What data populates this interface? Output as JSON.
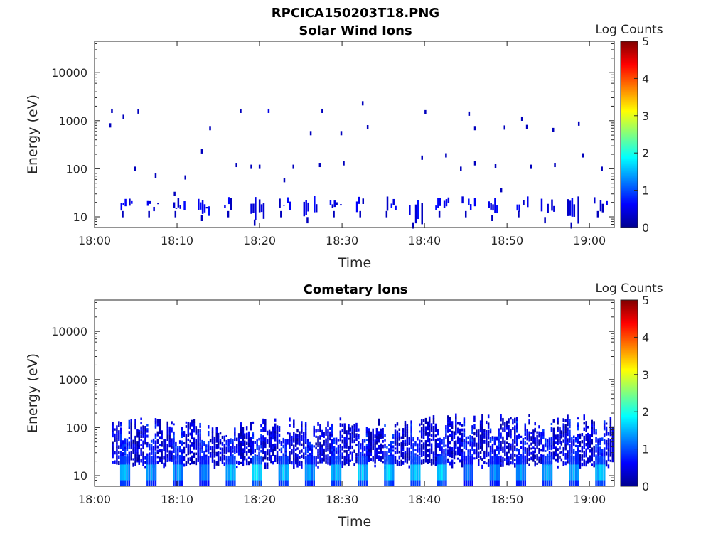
{
  "figure_title": "RPCICA150203T18.PNG",
  "chart_data": [
    {
      "type": "heatmap",
      "title": "Solar Wind Ions",
      "xlabel": "Time",
      "ylabel": "Energy (eV)",
      "yscale": "log",
      "ylim": [
        6,
        45000
      ],
      "xlim": [
        "18:00",
        "19:03"
      ],
      "x_ticks": [
        "18:00",
        "18:10",
        "18:20",
        "18:30",
        "18:40",
        "18:50",
        "19:00"
      ],
      "y_ticks": [
        "10",
        "100",
        "1000",
        "10000"
      ],
      "colorbar": {
        "label": "Log Counts",
        "ticks": [
          "0",
          "1",
          "2",
          "3",
          "4",
          "5"
        ],
        "range": [
          0,
          5
        ],
        "colormap": "jet"
      },
      "grid": false,
      "bursts": [
        {
          "t": "18:03.6",
          "e_low": 12,
          "e_high": 27,
          "level": 0.3
        },
        {
          "t": "18:06.8",
          "e_low": 12,
          "e_high": 22,
          "level": 0.3
        },
        {
          "t": "18:10.0",
          "e_low": 12,
          "e_high": 25,
          "level": 0.3
        },
        {
          "t": "18:13.2",
          "e_low": 10,
          "e_high": 25,
          "level": 0.3
        },
        {
          "t": "18:16.4",
          "e_low": 12,
          "e_high": 27,
          "level": 0.3
        },
        {
          "t": "18:19.6",
          "e_low": 8,
          "e_high": 27,
          "level": 0.3
        },
        {
          "t": "18:22.8",
          "e_low": 12,
          "e_high": 27,
          "level": 0.3
        },
        {
          "t": "18:26.0",
          "e_low": 9,
          "e_high": 27,
          "level": 0.3
        },
        {
          "t": "18:29.2",
          "e_low": 12,
          "e_high": 27,
          "level": 0.3
        },
        {
          "t": "18:32.4",
          "e_low": 12,
          "e_high": 27,
          "level": 0.3
        },
        {
          "t": "18:35.6",
          "e_low": 12,
          "e_high": 27,
          "level": 0.3
        },
        {
          "t": "18:38.8",
          "e_low": 7,
          "e_high": 27,
          "level": 0.3
        },
        {
          "t": "18:42.0",
          "e_low": 12,
          "e_high": 27,
          "level": 0.3
        },
        {
          "t": "18:45.2",
          "e_low": 12,
          "e_high": 27,
          "level": 0.3
        },
        {
          "t": "18:48.4",
          "e_low": 10,
          "e_high": 27,
          "level": 0.3
        },
        {
          "t": "18:51.6",
          "e_low": 12,
          "e_high": 27,
          "level": 0.3
        },
        {
          "t": "18:54.8",
          "e_low": 9,
          "e_high": 27,
          "level": 0.3
        },
        {
          "t": "18:58.0",
          "e_low": 7,
          "e_high": 27,
          "level": 0.3
        },
        {
          "t": "19:01.2",
          "e_low": 12,
          "e_high": 27,
          "level": 0.3
        }
      ],
      "scattered_points": [
        {
          "t": "18:01.8",
          "e": 800,
          "level": 0.3
        },
        {
          "t": "18:02.0",
          "e": 1600,
          "level": 0.3
        },
        {
          "t": "18:03.4",
          "e": 1200,
          "level": 0.3
        },
        {
          "t": "18:04.8",
          "e": 100,
          "level": 0.3
        },
        {
          "t": "18:05.2",
          "e": 1550,
          "level": 0.3
        },
        {
          "t": "18:07.3",
          "e": 72,
          "level": 0.3
        },
        {
          "t": "18:09.6",
          "e": 30,
          "level": 0.3
        },
        {
          "t": "18:10.9",
          "e": 66,
          "level": 0.3
        },
        {
          "t": "18:12.9",
          "e": 230,
          "level": 0.3
        },
        {
          "t": "18:13.9",
          "e": 700,
          "level": 0.3
        },
        {
          "t": "18:17.1",
          "e": 120,
          "level": 0.3
        },
        {
          "t": "18:17.6",
          "e": 1600,
          "level": 0.3
        },
        {
          "t": "18:18.9",
          "e": 110,
          "level": 0.3
        },
        {
          "t": "18:19.9",
          "e": 110,
          "level": 0.3
        },
        {
          "t": "18:21.0",
          "e": 1600,
          "level": 0.5
        },
        {
          "t": "18:22.9",
          "e": 58,
          "level": 0.3
        },
        {
          "t": "18:24.0",
          "e": 110,
          "level": 0.3
        },
        {
          "t": "18:26.1",
          "e": 550,
          "level": 0.3
        },
        {
          "t": "18:27.2",
          "e": 120,
          "level": 0.3
        },
        {
          "t": "18:27.5",
          "e": 1600,
          "level": 0.3
        },
        {
          "t": "18:29.8",
          "e": 550,
          "level": 0.3
        },
        {
          "t": "18:30.1",
          "e": 130,
          "level": 0.3
        },
        {
          "t": "18:32.4",
          "e": 2300,
          "level": 0.3
        },
        {
          "t": "18:33.0",
          "e": 730,
          "level": 0.3
        },
        {
          "t": "18:39.6",
          "e": 170,
          "level": 0.3
        },
        {
          "t": "18:40.0",
          "e": 1500,
          "level": 0.3
        },
        {
          "t": "18:42.5",
          "e": 190,
          "level": 0.3
        },
        {
          "t": "18:44.3",
          "e": 100,
          "level": 0.3
        },
        {
          "t": "18:45.3",
          "e": 1400,
          "level": 0.3
        },
        {
          "t": "18:46.0",
          "e": 700,
          "level": 0.3
        },
        {
          "t": "18:46.0",
          "e": 130,
          "level": 0.3
        },
        {
          "t": "18:48.5",
          "e": 115,
          "level": 0.3
        },
        {
          "t": "18:49.2",
          "e": 36,
          "level": 0.3
        },
        {
          "t": "18:49.6",
          "e": 720,
          "level": 0.3
        },
        {
          "t": "18:51.7",
          "e": 1100,
          "level": 0.3
        },
        {
          "t": "18:52.3",
          "e": 740,
          "level": 0.3
        },
        {
          "t": "18:52.8",
          "e": 110,
          "level": 0.3
        },
        {
          "t": "18:55.5",
          "e": 640,
          "level": 0.3
        },
        {
          "t": "18:55.7",
          "e": 120,
          "level": 0.3
        },
        {
          "t": "18:58.6",
          "e": 870,
          "level": 0.3
        },
        {
          "t": "18:59.1",
          "e": 190,
          "level": 0.3
        },
        {
          "t": "19:01.4",
          "e": 100,
          "level": 0.3
        }
      ]
    },
    {
      "type": "heatmap",
      "title": "Cometary Ions",
      "xlabel": "Time",
      "ylabel": "Energy (eV)",
      "yscale": "log",
      "ylim": [
        6,
        45000
      ],
      "xlim": [
        "18:00",
        "19:03"
      ],
      "x_ticks": [
        "18:00",
        "18:10",
        "18:20",
        "18:30",
        "18:40",
        "18:50",
        "19:00"
      ],
      "y_ticks": [
        "10",
        "100",
        "1000",
        "10000"
      ],
      "colorbar": {
        "label": "Log Counts",
        "ticks": [
          "0",
          "1",
          "2",
          "3",
          "4",
          "5"
        ],
        "range": [
          0,
          5
        ],
        "colormap": "jet"
      },
      "grid": false,
      "bursts": [
        {
          "t": "18:03.6",
          "e_low": 6,
          "e_high": 160,
          "core_level": 1.6
        },
        {
          "t": "18:06.8",
          "e_low": 6,
          "e_high": 160,
          "core_level": 1.5
        },
        {
          "t": "18:10.0",
          "e_low": 6,
          "e_high": 150,
          "core_level": 1.5
        },
        {
          "t": "18:13.2",
          "e_low": 6,
          "e_high": 150,
          "core_level": 1.3
        },
        {
          "t": "18:16.4",
          "e_low": 6,
          "e_high": 150,
          "core_level": 1.7
        },
        {
          "t": "18:19.6",
          "e_low": 6,
          "e_high": 160,
          "core_level": 1.9
        },
        {
          "t": "18:22.8",
          "e_low": 6,
          "e_high": 160,
          "core_level": 1.8
        },
        {
          "t": "18:26.0",
          "e_low": 6,
          "e_high": 150,
          "core_level": 1.5
        },
        {
          "t": "18:29.2",
          "e_low": 6,
          "e_high": 160,
          "core_level": 1.7
        },
        {
          "t": "18:32.4",
          "e_low": 6,
          "e_high": 150,
          "core_level": 1.8
        },
        {
          "t": "18:35.6",
          "e_low": 6,
          "e_high": 150,
          "core_level": 1.8
        },
        {
          "t": "18:38.8",
          "e_low": 6,
          "e_high": 170,
          "core_level": 1.7
        },
        {
          "t": "18:42.0",
          "e_low": 6,
          "e_high": 170,
          "core_level": 1.8
        },
        {
          "t": "18:45.2",
          "e_low": 6,
          "e_high": 180,
          "core_level": 1.3
        },
        {
          "t": "18:48.4",
          "e_low": 6,
          "e_high": 180,
          "core_level": 1.4
        },
        {
          "t": "18:51.6",
          "e_low": 6,
          "e_high": 190,
          "core_level": 1.5
        },
        {
          "t": "18:54.8",
          "e_low": 6,
          "e_high": 160,
          "core_level": 1.6
        },
        {
          "t": "18:58.0",
          "e_low": 6,
          "e_high": 180,
          "core_level": 1.6
        },
        {
          "t": "19:01.2",
          "e_low": 6,
          "e_high": 170,
          "core_level": 1.7
        }
      ]
    }
  ],
  "colors": {
    "axes": "#262626",
    "background": "#ffffff",
    "colormap": "jet"
  }
}
